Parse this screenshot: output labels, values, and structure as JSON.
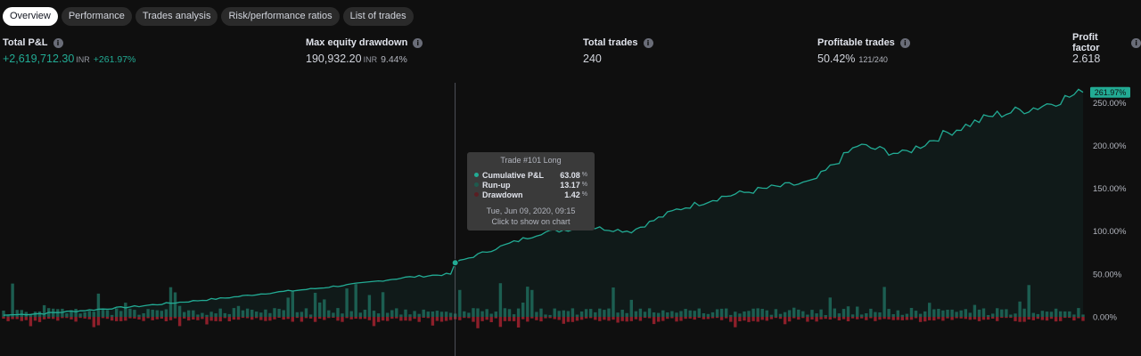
{
  "tabs": [
    {
      "label": "Overview",
      "active": true
    },
    {
      "label": "Performance",
      "active": false
    },
    {
      "label": "Trades analysis",
      "active": false
    },
    {
      "label": "Risk/performance ratios",
      "active": false
    },
    {
      "label": "List of trades",
      "active": false
    }
  ],
  "stats": {
    "total_pnl": {
      "label": "Total P&L",
      "value": "+2,619,712.30",
      "unit": "INR",
      "sub": "+261.97%"
    },
    "max_drawdown": {
      "label": "Max equity drawdown",
      "value": "190,932.20",
      "unit": "INR",
      "sub": "9.44%"
    },
    "total_trades": {
      "label": "Total trades",
      "value": "240"
    },
    "profitable_trades": {
      "label": "Profitable trades",
      "value": "50.42%",
      "sub": "121/240"
    },
    "profit_factor": {
      "label": "Profit factor",
      "value": "2.618"
    }
  },
  "tooltip": {
    "title": "Trade #101 Long",
    "rows": [
      {
        "label": "Cumulative P&L",
        "value": "63.08",
        "unit": "%",
        "color": "#22ab94"
      },
      {
        "label": "Run-up",
        "value": "13.17",
        "unit": "%",
        "color": "#1e5a4e"
      },
      {
        "label": "Drawdown",
        "value": "1.42",
        "unit": "%",
        "color": "#5a1e23"
      }
    ],
    "date": "Tue, Jun 09, 2020, 09:15",
    "hint": "Click to show on chart"
  },
  "colors": {
    "profit": "#22ab94",
    "loss": "#f23645",
    "background": "#0f0f0f"
  },
  "chart_data": {
    "type": "area",
    "y_axis_labels": [
      "250.00%",
      "200.00%",
      "150.00%",
      "100.00%",
      "50.00%",
      "0.00%"
    ],
    "y_axis_position": "right",
    "ylim": [
      0,
      270
    ],
    "last_value_label": "261.97%",
    "series": [
      {
        "x": [
          1,
          10,
          20,
          30,
          40,
          50,
          60,
          70,
          80,
          90,
          100,
          101,
          110,
          120,
          130,
          140,
          150,
          160,
          170,
          180,
          190,
          200,
          210,
          220,
          230,
          240
        ],
        "values": [
          2,
          4,
          8,
          12,
          17,
          22,
          28,
          33,
          39,
          46,
          50,
          63.08,
          80,
          98,
          105,
          100,
          125,
          140,
          150,
          157,
          200,
          190,
          215,
          235,
          245,
          261.97
        ]
      }
    ],
    "bars": {
      "note": "per-trade run-up (green) and drawdown (red) bars along the baseline"
    }
  }
}
